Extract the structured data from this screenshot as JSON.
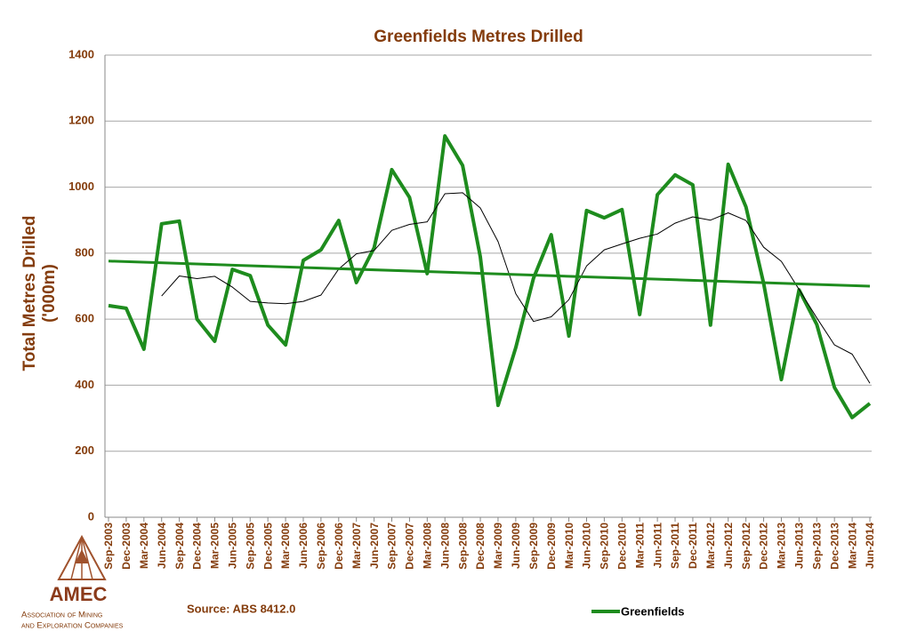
{
  "chart_data": {
    "type": "line",
    "title": "Greenfields Metres Drilled",
    "ylabel": [
      "Total Metres Drilled",
      "('000m)"
    ],
    "source": "Source: ABS 8412.0",
    "logo": {
      "name": "AMEC",
      "line1": "Association of Mining",
      "line2": "and Exploration Companies"
    },
    "categories": [
      "Sep-2003",
      "Dec-2003",
      "Mar-2004",
      "Jun-2004",
      "Sep-2004",
      "Dec-2004",
      "Mar-2005",
      "Jun-2005",
      "Sep-2005",
      "Dec-2005",
      "Mar-2006",
      "Jun-2006",
      "Sep-2006",
      "Dec-2006",
      "Mar-2007",
      "Jun-2007",
      "Sep-2007",
      "Dec-2007",
      "Mar-2008",
      "Jun-2008",
      "Sep-2008",
      "Dec-2008",
      "Mar-2009",
      "Jun-2009",
      "Sep-2009",
      "Dec-2009",
      "Mar-2010",
      "Jun-2010",
      "Sep-2010",
      "Dec-2010",
      "Mar-2011",
      "Jun-2011",
      "Sep-2011",
      "Dec-2011",
      "Mar-2012",
      "Jun-2012",
      "Sep-2012",
      "Dec-2012",
      "Mar-2013",
      "Jun-2013",
      "Sep-2013",
      "Dec-2013",
      "Mar-2014",
      "Jun-2014"
    ],
    "series": [
      {
        "name": "Greenfields",
        "color": "#1e8c1e",
        "values": [
          641,
          633,
          509,
          889,
          897,
          600,
          533,
          751,
          732,
          582,
          522,
          778,
          810,
          899,
          711,
          816,
          1053,
          969,
          738,
          1155,
          1066,
          789,
          339,
          514,
          724,
          856,
          549,
          929,
          907,
          932,
          614,
          977,
          1037,
          1007,
          582,
          1069,
          940,
          708,
          417,
          689,
          584,
          393,
          302,
          345
        ]
      },
      {
        "color": "#000000",
        "values": [
          null,
          null,
          null,
          670,
          731,
          723,
          730,
          697,
          654,
          649,
          647,
          654,
          673,
          752,
          798,
          808,
          869,
          887,
          895,
          980,
          983,
          937,
          835,
          677,
          593,
          607,
          659,
          761,
          810,
          828,
          845,
          858,
          891,
          910,
          900,
          922,
          899,
          818,
          775,
          690,
          604,
          522,
          494,
          406
        ]
      }
    ],
    "trend": {
      "color": "#1e8c1e",
      "values": [
        776,
        700
      ]
    },
    "ylim": [
      0,
      1400
    ],
    "yticks": [
      0,
      200,
      400,
      600,
      800,
      1000,
      1200,
      1400
    ],
    "grid": true
  }
}
